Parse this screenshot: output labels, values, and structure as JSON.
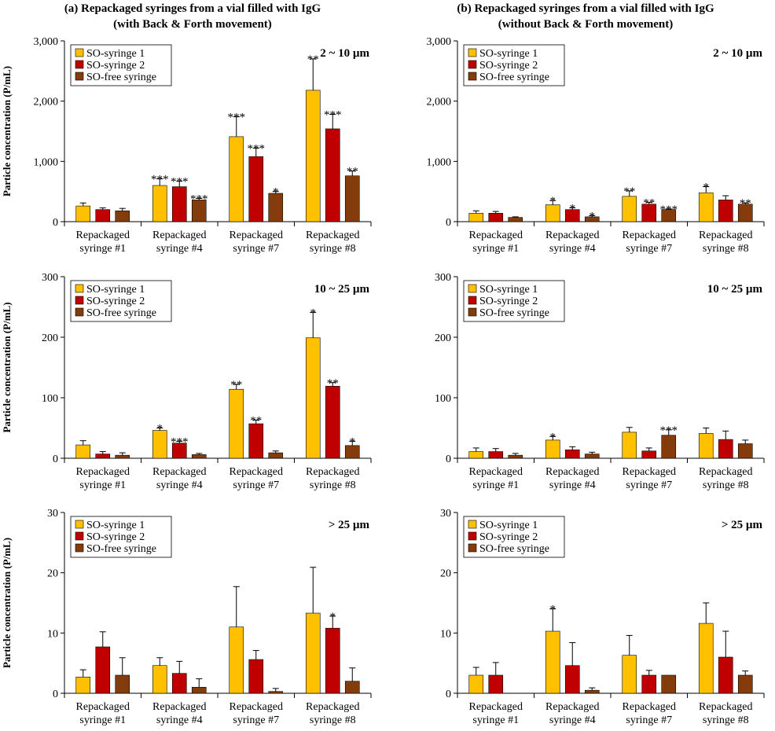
{
  "headers": {
    "left_line1": "(a) Repackaged syringes from a vial filled with IgG",
    "left_line2": "(with Back & Forth movement)",
    "right_line1": "(b) Repackaged syringes from a vial filled with IgG",
    "right_line2": "(without Back & Forth movement)"
  },
  "colors": {
    "series": [
      "#FFC000",
      "#C00000",
      "#843C0C"
    ],
    "axis": "#000000"
  },
  "legend_labels": [
    "SO-syringe 1",
    "SO-syringe 2",
    "SO-free syringe"
  ],
  "chart_data": [
    {
      "type": "bar",
      "id": "a-2-10",
      "column": "a",
      "size_label": "2 ~ 10 µm",
      "ylabel": "Particle concentration (P/mL)",
      "ylim": [
        0,
        3000
      ],
      "yticks": [
        0,
        1000,
        2000,
        3000
      ],
      "ytick_labels": [
        "0",
        "1,000",
        "2,000",
        "3,000"
      ],
      "cat_line1": [
        "Repackaged",
        "Repackaged",
        "Repackaged",
        "Repackaged"
      ],
      "cat_line2": [
        "syringe #1",
        "syringe #4",
        "syringe #7",
        "syringe #8"
      ],
      "series": [
        {
          "name": "SO-syringe 1",
          "values": [
            260,
            600,
            1410,
            2180
          ],
          "errors": [
            50,
            110,
            330,
            520
          ],
          "stars": [
            "",
            "***",
            "***",
            "**"
          ]
        },
        {
          "name": "SO-syringe 2",
          "values": [
            200,
            580,
            1080,
            1540
          ],
          "errors": [
            30,
            90,
            140,
            240
          ],
          "stars": [
            "",
            "***",
            "***",
            "***"
          ]
        },
        {
          "name": "SO-free syringe",
          "values": [
            180,
            360,
            470,
            760
          ],
          "errors": [
            40,
            25,
            30,
            80
          ],
          "stars": [
            "",
            "***",
            "*",
            "**"
          ]
        }
      ]
    },
    {
      "type": "bar",
      "id": "b-2-10",
      "column": "b",
      "size_label": "2 ~ 10 µm",
      "ylabel": "",
      "ylim": [
        0,
        3000
      ],
      "yticks": [
        0,
        1000,
        2000,
        3000
      ],
      "ytick_labels": [
        "0",
        "1,000",
        "2,000",
        "3,000"
      ],
      "cat_line1": [
        "Repackaged",
        "Repackaged",
        "Repackaged",
        "Repackaged"
      ],
      "cat_line2": [
        "syringe #1",
        "syringe #4",
        "syringe #7",
        "syringe #8"
      ],
      "series": [
        {
          "name": "SO-syringe 1",
          "values": [
            140,
            280,
            420,
            480
          ],
          "errors": [
            40,
            70,
            90,
            100
          ],
          "stars": [
            "",
            "*",
            "**",
            "*"
          ]
        },
        {
          "name": "SO-syringe 2",
          "values": [
            140,
            200,
            290,
            360
          ],
          "errors": [
            30,
            30,
            30,
            70
          ],
          "stars": [
            "",
            "*",
            "**",
            ""
          ]
        },
        {
          "name": "SO-free syringe",
          "values": [
            70,
            80,
            200,
            290
          ],
          "errors": [
            10,
            20,
            10,
            20
          ],
          "stars": [
            "",
            "*",
            "***",
            "**"
          ]
        }
      ]
    },
    {
      "type": "bar",
      "id": "a-10-25",
      "column": "a",
      "size_label": "10 ~ 25 µm",
      "ylabel": "Particle concentration (P/mL)",
      "ylim": [
        0,
        300
      ],
      "yticks": [
        0,
        100,
        200,
        300
      ],
      "ytick_labels": [
        "0",
        "100",
        "200",
        "300"
      ],
      "cat_line1": [
        "Repackaged",
        "Repackaged",
        "Repackaged",
        "Repackaged"
      ],
      "cat_line2": [
        "syringe #1",
        "syringe #4",
        "syringe #7",
        "syringe #8"
      ],
      "series": [
        {
          "name": "SO-syringe 1",
          "values": [
            22,
            46,
            114,
            199
          ],
          "errors": [
            7,
            4,
            8,
            42
          ],
          "stars": [
            "",
            "*",
            "**",
            "*"
          ]
        },
        {
          "name": "SO-syringe 2",
          "values": [
            7,
            25,
            57,
            119
          ],
          "errors": [
            4,
            3,
            6,
            6
          ],
          "stars": [
            "",
            "***",
            "**",
            "**"
          ]
        },
        {
          "name": "SO-free syringe",
          "values": [
            5,
            6,
            9,
            21
          ],
          "errors": [
            4,
            2,
            3,
            7
          ],
          "stars": [
            "",
            "",
            "",
            "*"
          ]
        }
      ]
    },
    {
      "type": "bar",
      "id": "b-10-25",
      "column": "b",
      "size_label": "10 ~ 25 µm",
      "ylabel": "",
      "ylim": [
        0,
        300
      ],
      "yticks": [
        0,
        100,
        200,
        300
      ],
      "ytick_labels": [
        "0",
        "100",
        "200",
        "300"
      ],
      "cat_line1": [
        "Repackaged",
        "Repackaged",
        "Repackaged",
        "Repackaged"
      ],
      "cat_line2": [
        "syringe #1",
        "syringe #4",
        "syringe #7",
        "syringe #8"
      ],
      "series": [
        {
          "name": "SO-syringe 1",
          "values": [
            11,
            30,
            43,
            41
          ],
          "errors": [
            6,
            6,
            8,
            9
          ],
          "stars": [
            "",
            "*",
            "",
            ""
          ]
        },
        {
          "name": "SO-syringe 2",
          "values": [
            11,
            14,
            12,
            31
          ],
          "errors": [
            5,
            5,
            5,
            14
          ],
          "stars": [
            "",
            "",
            "",
            ""
          ]
        },
        {
          "name": "SO-free syringe",
          "values": [
            5,
            7,
            38,
            24
          ],
          "errors": [
            3,
            3,
            9,
            6
          ],
          "stars": [
            "",
            "",
            "***",
            ""
          ]
        }
      ]
    },
    {
      "type": "bar",
      "id": "a-25",
      "column": "a",
      "size_label": "> 25 µm",
      "ylabel": "Particle concentration (P/mL)",
      "ylim": [
        0,
        30
      ],
      "yticks": [
        0,
        10,
        20,
        30
      ],
      "ytick_labels": [
        "0",
        "10",
        "20",
        "30"
      ],
      "cat_line1": [
        "Repackaged",
        "Repackaged",
        "Repackaged",
        "Repackaged"
      ],
      "cat_line2": [
        "syringe #1",
        "syringe #4",
        "syringe #7",
        "syringe #8"
      ],
      "series": [
        {
          "name": "SO-syringe 1",
          "values": [
            2.7,
            4.6,
            11.0,
            13.3
          ],
          "errors": [
            1.2,
            1.3,
            6.7,
            7.6
          ],
          "stars": [
            "",
            "",
            "",
            ""
          ]
        },
        {
          "name": "SO-syringe 2",
          "values": [
            7.7,
            3.3,
            5.6,
            10.8
          ],
          "errors": [
            2.5,
            2.0,
            1.5,
            2.0
          ],
          "stars": [
            "",
            "",
            "",
            "*"
          ]
        },
        {
          "name": "SO-free syringe",
          "values": [
            3.0,
            1.0,
            0.3,
            2.0
          ],
          "errors": [
            2.9,
            1.4,
            0.5,
            2.2
          ],
          "stars": [
            "",
            "",
            "",
            ""
          ]
        }
      ]
    },
    {
      "type": "bar",
      "id": "b-25",
      "column": "b",
      "size_label": "> 25 µm",
      "ylabel": "",
      "ylim": [
        0,
        30
      ],
      "yticks": [
        0,
        10,
        20,
        30
      ],
      "ytick_labels": [
        "0",
        "10",
        "20",
        "30"
      ],
      "cat_line1": [
        "Repackaged",
        "Repackaged",
        "Repackaged",
        "Repackaged"
      ],
      "cat_line2": [
        "syringe #1",
        "syringe #4",
        "syringe #7",
        "syringe #8"
      ],
      "series": [
        {
          "name": "SO-syringe 1",
          "values": [
            3.0,
            10.3,
            6.3,
            11.6
          ],
          "errors": [
            1.3,
            3.7,
            3.3,
            3.4
          ],
          "stars": [
            "",
            "*",
            "",
            ""
          ]
        },
        {
          "name": "SO-syringe 2",
          "values": [
            3.0,
            4.6,
            3.0,
            6.0
          ],
          "errors": [
            2.1,
            3.8,
            0.8,
            4.3
          ],
          "stars": [
            "",
            "",
            "",
            ""
          ]
        },
        {
          "name": "SO-free syringe",
          "values": [
            0,
            0.5,
            3.0,
            3.0
          ],
          "errors": [
            0,
            0.4,
            0,
            0.7
          ],
          "stars": [
            "",
            "",
            "",
            ""
          ]
        }
      ]
    }
  ]
}
